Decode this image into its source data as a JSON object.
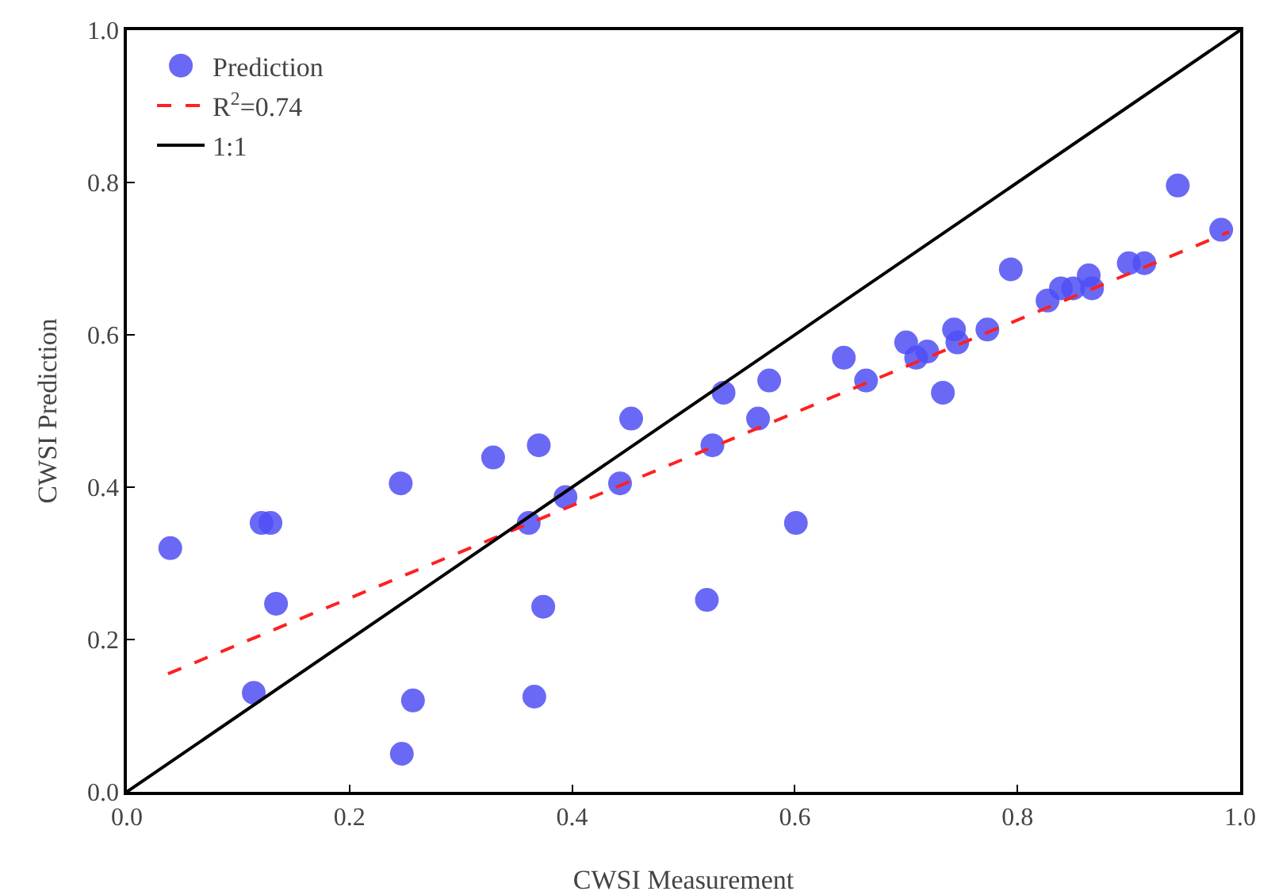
{
  "chart_data": {
    "type": "scatter",
    "xlabel": "CWSI Measurement",
    "ylabel": "CWSI Prediction",
    "xlim": [
      0,
      1
    ],
    "ylim": [
      0,
      1
    ],
    "xticks": [
      {
        "value": 0,
        "label": "0.0"
      },
      {
        "value": 0.2,
        "label": "0.2"
      },
      {
        "value": 0.4,
        "label": "0.4"
      },
      {
        "value": 0.6,
        "label": "0.6"
      },
      {
        "value": 0.8,
        "label": "0.8"
      },
      {
        "value": 1,
        "label": "1.0"
      }
    ],
    "yticks": [
      {
        "value": 0,
        "label": "0.0"
      },
      {
        "value": 0.2,
        "label": "0.2"
      },
      {
        "value": 0.4,
        "label": "0.4"
      },
      {
        "value": 0.6,
        "label": "0.6"
      },
      {
        "value": 0.8,
        "label": "0.8"
      },
      {
        "value": 1,
        "label": "1.0"
      }
    ],
    "grid": false,
    "legend": "top left",
    "series": [
      {
        "name": "Prediction",
        "marker": "circle",
        "color": "#4f4ff5",
        "x": [
          0.039,
          0.114,
          0.121,
          0.129,
          0.134,
          0.246,
          0.247,
          0.257,
          0.329,
          0.361,
          0.366,
          0.37,
          0.374,
          0.394,
          0.443,
          0.453,
          0.521,
          0.526,
          0.536,
          0.567,
          0.577,
          0.601,
          0.644,
          0.664,
          0.7,
          0.709,
          0.719,
          0.733,
          0.743,
          0.746,
          0.773,
          0.794,
          0.827,
          0.839,
          0.85,
          0.864,
          0.867,
          0.9,
          0.914,
          0.944,
          0.983
        ],
        "values": [
          0.32,
          0.13,
          0.353,
          0.353,
          0.247,
          0.405,
          0.05,
          0.12,
          0.439,
          0.353,
          0.125,
          0.455,
          0.243,
          0.387,
          0.405,
          0.49,
          0.252,
          0.455,
          0.524,
          0.49,
          0.54,
          0.353,
          0.57,
          0.54,
          0.59,
          0.57,
          0.578,
          0.524,
          0.607,
          0.59,
          0.607,
          0.686,
          0.645,
          0.661,
          0.661,
          0.678,
          0.661,
          0.694,
          0.694,
          0.796,
          0.738
        ]
      },
      {
        "name": "R$^{2}$=0.74",
        "type": "line",
        "line_style": "dashed",
        "marker": "none",
        "color": "#ff2020",
        "x": [
          0.037,
          0.99
        ],
        "values": [
          0.155,
          0.735
        ]
      },
      {
        "name": "1:1",
        "type": "line",
        "line_style": "solid",
        "marker": "none",
        "color": "#000000",
        "x": [
          0,
          1
        ],
        "values": [
          0,
          1
        ]
      }
    ]
  }
}
